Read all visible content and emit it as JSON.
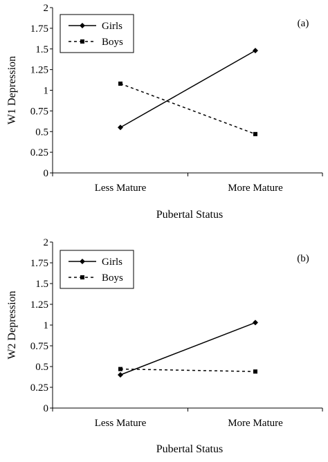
{
  "chart_data": [
    {
      "type": "line",
      "panel_label": "(a)",
      "xlabel": "Pubertal Status",
      "ylabel": "W1 Depression",
      "categories": [
        "Less Mature",
        "More Mature"
      ],
      "yticks": [
        "0",
        "0.25",
        "0.5",
        "0.75",
        "1",
        "1.25",
        "1.5",
        "1.75",
        "2"
      ],
      "ylim": [
        0,
        2
      ],
      "legend_position": "top-left",
      "grid": false,
      "series": [
        {
          "name": "Girls",
          "values": [
            0.55,
            1.48
          ],
          "line_style": "solid",
          "marker": "diamond",
          "color": "#000000"
        },
        {
          "name": "Boys",
          "values": [
            1.08,
            0.47
          ],
          "line_style": "dashed",
          "marker": "square",
          "color": "#000000"
        }
      ]
    },
    {
      "type": "line",
      "panel_label": "(b)",
      "xlabel": "Pubertal Status",
      "ylabel": "W2 Depression",
      "categories": [
        "Less Mature",
        "More Mature"
      ],
      "yticks": [
        "0",
        "0.25",
        "0.5",
        "0.75",
        "1",
        "1.25",
        "1.5",
        "1.75",
        "2"
      ],
      "ylim": [
        0,
        2
      ],
      "legend_position": "top-left",
      "grid": false,
      "series": [
        {
          "name": "Girls",
          "values": [
            0.4,
            1.03
          ],
          "line_style": "solid",
          "marker": "diamond",
          "color": "#000000"
        },
        {
          "name": "Boys",
          "values": [
            0.47,
            0.44
          ],
          "line_style": "dashed",
          "marker": "square",
          "color": "#000000"
        }
      ]
    }
  ]
}
